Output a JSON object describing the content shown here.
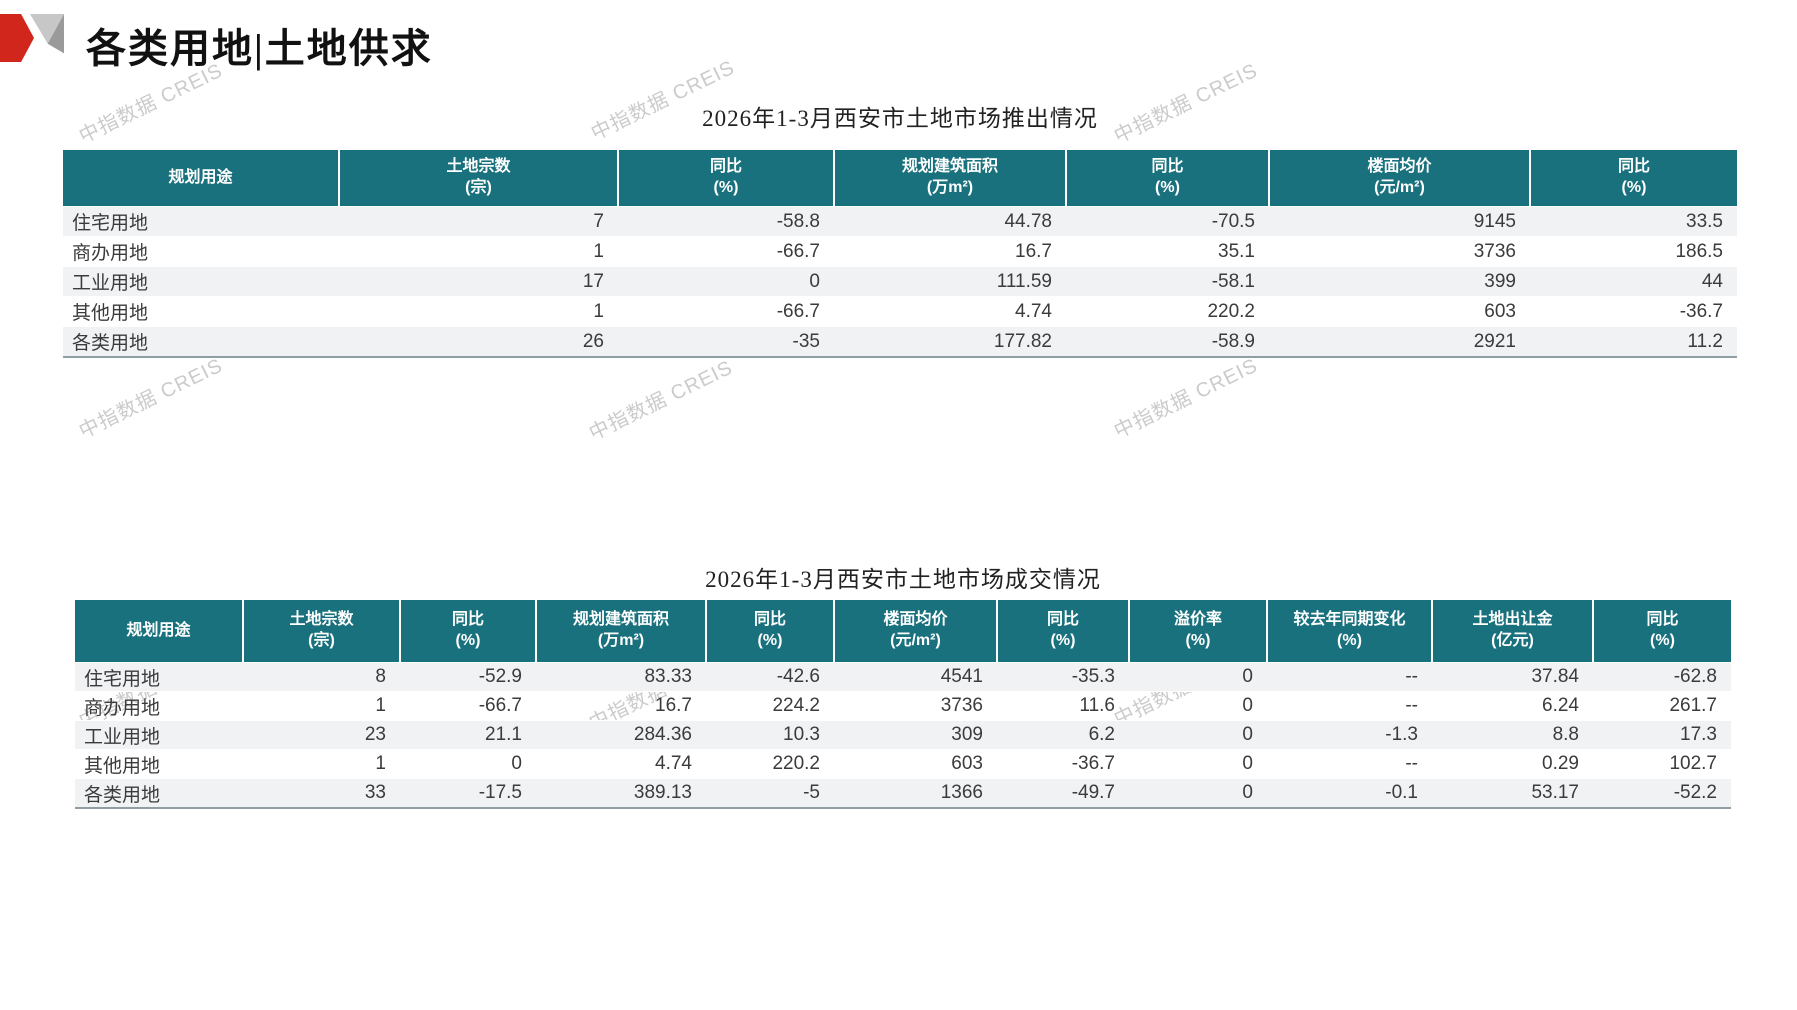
{
  "page": {
    "title": "各类用地|土地供求",
    "watermark_text": "中指数据 CREIS"
  },
  "supply_table": {
    "title": "2026年1-3月西安市土地市场推出情况",
    "headers": [
      [
        "规划用途",
        ""
      ],
      [
        "土地宗数",
        "(宗)"
      ],
      [
        "同比",
        "(%)"
      ],
      [
        "规划建筑面积",
        "(万m²)"
      ],
      [
        "同比",
        "(%)"
      ],
      [
        "楼面均价",
        "(元/m²)"
      ],
      [
        "同比",
        "(%)"
      ]
    ],
    "rows": [
      [
        "住宅用地",
        "7",
        "-58.8",
        "44.78",
        "-70.5",
        "9145",
        "33.5"
      ],
      [
        "商办用地",
        "1",
        "-66.7",
        "16.7",
        "35.1",
        "3736",
        "186.5"
      ],
      [
        "工业用地",
        "17",
        "0",
        "111.59",
        "-58.1",
        "399",
        "44"
      ],
      [
        "其他用地",
        "1",
        "-66.7",
        "4.74",
        "220.2",
        "603",
        "-36.7"
      ],
      [
        "各类用地",
        "26",
        "-35",
        "177.82",
        "-58.9",
        "2921",
        "11.2"
      ]
    ]
  },
  "transaction_table": {
    "title": "2026年1-3月西安市土地市场成交情况",
    "headers": [
      [
        "规划用途",
        ""
      ],
      [
        "土地宗数",
        "(宗)"
      ],
      [
        "同比",
        "(%)"
      ],
      [
        "规划建筑面积",
        "(万m²)"
      ],
      [
        "同比",
        "(%)"
      ],
      [
        "楼面均价",
        "(元/m²)"
      ],
      [
        "同比",
        "(%)"
      ],
      [
        "溢价率",
        "(%)"
      ],
      [
        "较去年同期变化",
        "(%)"
      ],
      [
        "土地出让金",
        "(亿元)"
      ],
      [
        "同比",
        "(%)"
      ]
    ],
    "rows": [
      [
        "住宅用地",
        "8",
        "-52.9",
        "83.33",
        "-42.6",
        "4541",
        "-35.3",
        "0",
        "--",
        "37.84",
        "-62.8"
      ],
      [
        "商办用地",
        "1",
        "-66.7",
        "16.7",
        "224.2",
        "3736",
        "11.6",
        "0",
        "--",
        "6.24",
        "261.7"
      ],
      [
        "工业用地",
        "23",
        "21.1",
        "284.36",
        "10.3",
        "309",
        "6.2",
        "0",
        "-1.3",
        "8.8",
        "17.3"
      ],
      [
        "其他用地",
        "1",
        "0",
        "4.74",
        "220.2",
        "603",
        "-36.7",
        "0",
        "--",
        "0.29",
        "102.7"
      ],
      [
        "各类用地",
        "33",
        "-17.5",
        "389.13",
        "-5",
        "1366",
        "-49.7",
        "0",
        "-0.1",
        "53.17",
        "-52.2"
      ]
    ]
  },
  "colors": {
    "header_teal": "#19717D",
    "stripe_gray": "#F0F2F4",
    "accent_red": "#D0261C",
    "watermark_gray": "#CBCBCB"
  }
}
